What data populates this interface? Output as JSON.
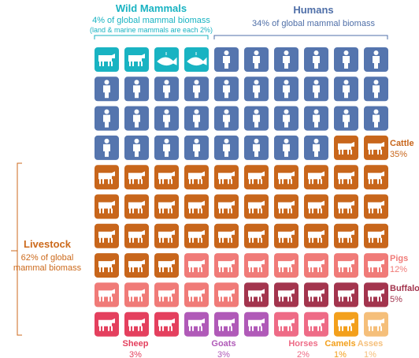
{
  "chart_data": {
    "type": "waffle",
    "groups": [
      {
        "title": "Wild Mammals",
        "subtitle": "4% of global mammal biomass",
        "note": "(land & marine mammals are each 2%)",
        "color": "#19b3c2"
      },
      {
        "title": "Humans",
        "subtitle": "34% of global mammal biomass",
        "color": "#4f6fa8"
      },
      {
        "title": "Livestock",
        "subtitle": "62% of global mammal biomass",
        "color": "#cc6a1c"
      }
    ],
    "series": [
      {
        "color": "#19b3c2",
        "value": 4
      },
      {
        "color": "#5575ae",
        "value": 34
      },
      {
        "name": "Cattle",
        "color": "#c8661b",
        "value": 35,
        "value_label": "35%"
      },
      {
        "name": "Pigs",
        "color": "#f07b78",
        "value": 12,
        "value_label": "12%"
      },
      {
        "name": "Buffalo",
        "color": "#a3354e",
        "value": 5,
        "value_label": "5%"
      },
      {
        "name": "Sheep",
        "color": "#e4405e",
        "value": 3,
        "value_label": "3%"
      },
      {
        "name": "Goats",
        "color": "#b05ab8",
        "value": 3,
        "value_label": "3%"
      },
      {
        "name": "Horses",
        "color": "#ee6b86",
        "value": 2,
        "value_label": "2%"
      },
      {
        "name": "Camels",
        "color": "#f3a01c",
        "value": 1,
        "value_label": "1%"
      },
      {
        "name": "Asses",
        "color": "#f5bf7a",
        "value": 1,
        "value_label": "1%"
      }
    ]
  }
}
